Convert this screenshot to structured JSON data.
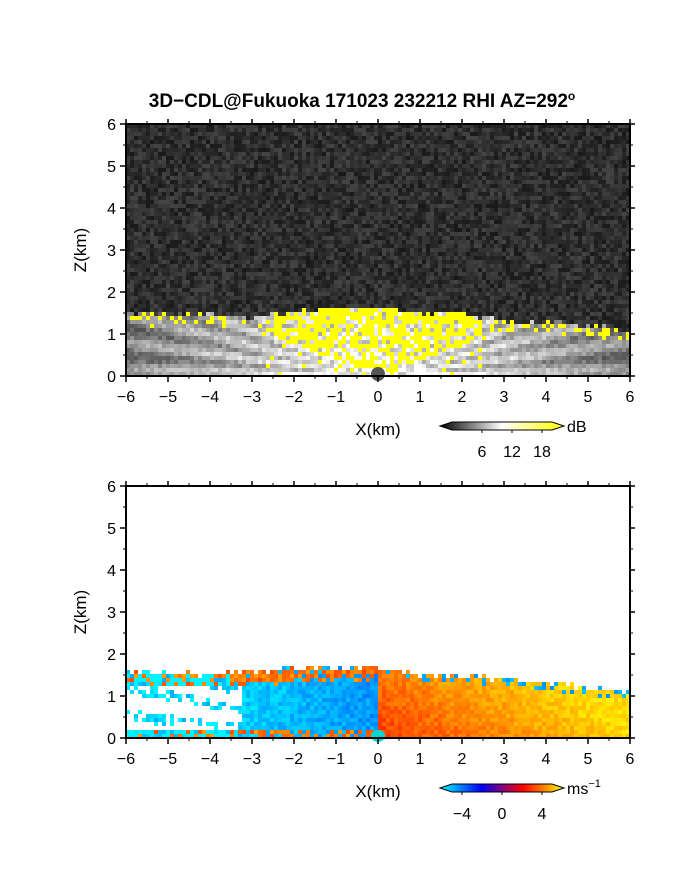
{
  "title_main": "3D−CDL@Fukuoka 171023 232212 RHI AZ=292",
  "title_deg": "o",
  "chart_data": [
    {
      "type": "heatmap",
      "name": "backscatter-intensity",
      "xlabel": "X(km)",
      "ylabel": "Z(km)",
      "xlim": [
        -6,
        6
      ],
      "ylim": [
        0,
        6
      ],
      "xticks": [
        -6,
        -5,
        -4,
        -3,
        -2,
        -1,
        0,
        1,
        2,
        3,
        4,
        5,
        6
      ],
      "yticks": [
        0,
        1,
        2,
        3,
        4,
        5,
        6
      ],
      "colorbar": {
        "unit": "dB",
        "ticks": [
          6,
          12,
          18
        ],
        "range": [
          0,
          20
        ],
        "colors": [
          "#000000",
          "#ffffff",
          "#ffff00"
        ]
      },
      "note_unlabeled_features": "noise background dark gray above ~1.6 km; saturated yellow region near boundary-layer top",
      "boundary_layer_top_km": [
        [
          -6,
          1.48
        ],
        [
          -4,
          1.45
        ],
        [
          -3,
          1.38
        ],
        [
          -2,
          1.55
        ],
        [
          -1,
          1.6
        ],
        [
          0,
          1.62
        ],
        [
          1,
          1.5
        ],
        [
          2,
          1.5
        ],
        [
          3,
          1.3
        ],
        [
          4,
          1.3
        ],
        [
          5,
          1.2
        ],
        [
          6,
          1.1
        ]
      ]
    },
    {
      "type": "heatmap",
      "name": "doppler-velocity",
      "xlabel": "X(km)",
      "ylabel": "Z(km)",
      "xlim": [
        -6,
        6
      ],
      "ylim": [
        0,
        6
      ],
      "xticks": [
        -6,
        -5,
        -4,
        -3,
        -2,
        -1,
        0,
        1,
        2,
        3,
        4,
        5,
        6
      ],
      "yticks": [
        0,
        1,
        2,
        3,
        4,
        5,
        6
      ],
      "colorbar": {
        "unit": "ms",
        "unit_exp": "−1",
        "ticks": [
          "−4",
          "0",
          "4"
        ],
        "range": [
          -5,
          5
        ],
        "colors": [
          "#00ffff",
          "#0000ff",
          "#ff0000",
          "#ffff00"
        ]
      },
      "data_top_km": [
        [
          -6,
          1.6
        ],
        [
          -4,
          1.5
        ],
        [
          -3,
          1.6
        ],
        [
          -2,
          1.65
        ],
        [
          -1,
          1.7
        ],
        [
          0,
          1.7
        ],
        [
          1,
          1.5
        ],
        [
          2,
          1.5
        ],
        [
          3,
          1.4
        ],
        [
          4,
          1.3
        ],
        [
          5,
          1.2
        ],
        [
          6,
          1.1
        ]
      ]
    }
  ]
}
